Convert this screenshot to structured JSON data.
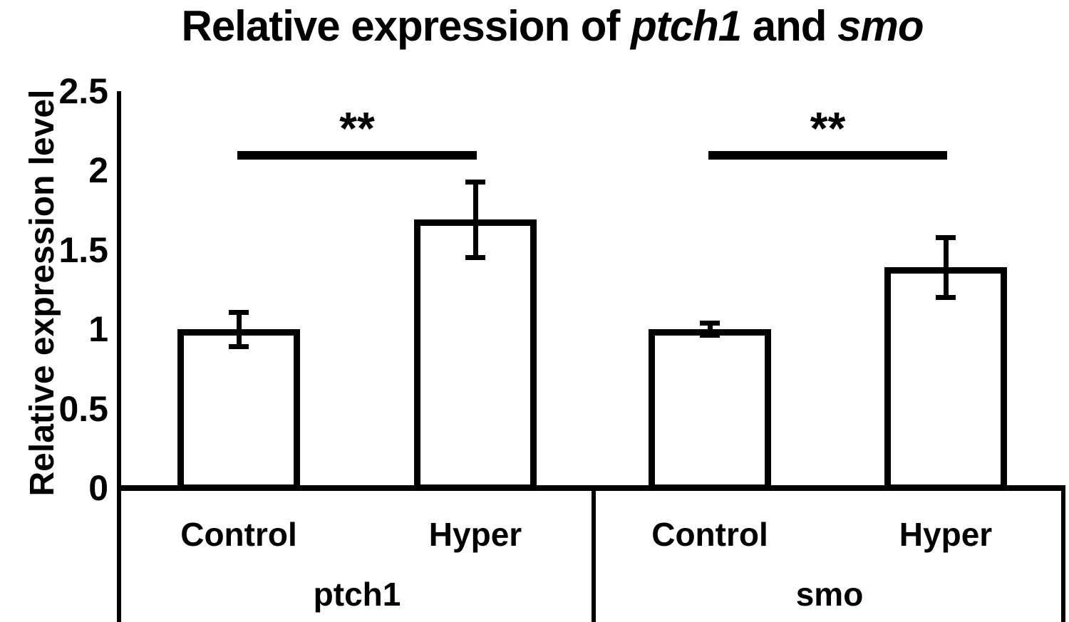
{
  "figure": {
    "title_parts": [
      {
        "text": "Relative expression of ",
        "italic": false
      },
      {
        "text": "ptch1",
        "italic": true
      },
      {
        "text": " and ",
        "italic": false
      },
      {
        "text": "smo",
        "italic": true
      }
    ]
  },
  "y_axis": {
    "label": "Relative expression level",
    "min": 0,
    "max": 2.5,
    "ticks": [
      {
        "label": "0",
        "value": 0
      },
      {
        "label": "0.5",
        "value": 0.5
      },
      {
        "label": "1",
        "value": 1
      },
      {
        "label": "1.5",
        "value": 1.5
      },
      {
        "label": "2",
        "value": 2
      },
      {
        "label": "2.5",
        "value": 2.5
      }
    ]
  },
  "chart_data": {
    "type": "bar",
    "title": "Relative expression of ptch1 and smo",
    "ylabel": "Relative expression level",
    "ylim": [
      0,
      2.5
    ],
    "yticks": [
      0,
      0.5,
      1,
      1.5,
      2,
      2.5
    ],
    "grid": false,
    "legend": false,
    "categories": [
      "ptch1 Control",
      "ptch1 Hyper",
      "smo Control",
      "smo Hyper"
    ],
    "values": [
      1.0,
      1.69,
      1.0,
      1.39
    ],
    "errors": [
      0.11,
      0.24,
      0.04,
      0.19
    ],
    "groups": [
      {
        "label": "ptch1",
        "significance": "**",
        "bars": [
          {
            "label": "Control",
            "value": 1.0,
            "error": 0.11
          },
          {
            "label": "Hyper",
            "value": 1.69,
            "error": 0.24
          }
        ]
      },
      {
        "label": "smo",
        "significance": "**",
        "bars": [
          {
            "label": "Control",
            "value": 1.0,
            "error": 0.04
          },
          {
            "label": "Hyper",
            "value": 1.39,
            "error": 0.19
          }
        ]
      }
    ],
    "colors": {
      "bar_fill": "#ffffff",
      "bar_border": "#000000",
      "foreground": "#000000",
      "background": "#ffffff"
    }
  }
}
